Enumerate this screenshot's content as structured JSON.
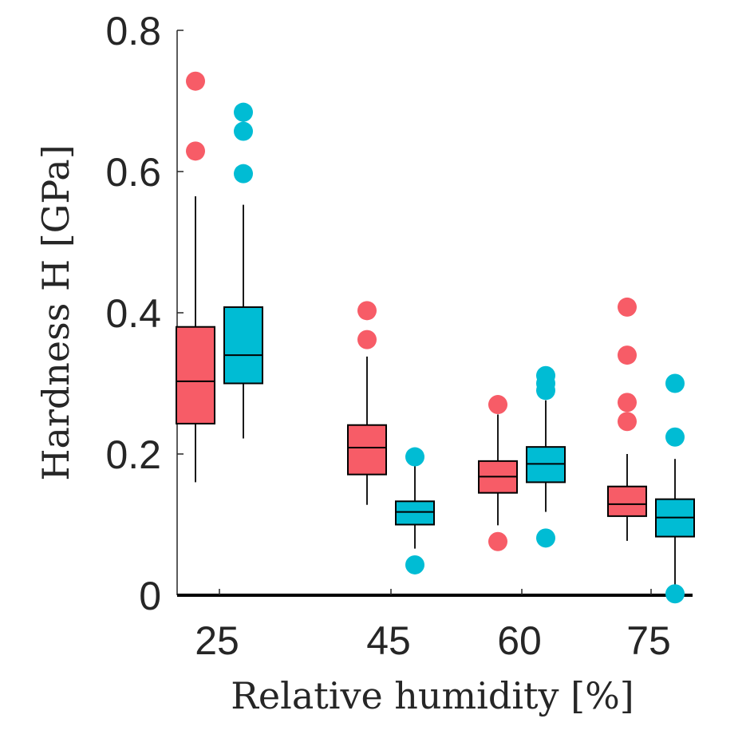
{
  "chart_data": {
    "type": "box",
    "xlabel": "Relative humidity [%]",
    "ylabel": "Hardness H [GPa]",
    "ylim": [
      0,
      0.8
    ],
    "yticks": [
      "0",
      "0.2",
      "0.4",
      "0.6",
      "0.8"
    ],
    "categories": [
      "25",
      "45",
      "60",
      "75"
    ],
    "colors": [
      "#f75c67",
      "#00bcd4"
    ],
    "grid": false,
    "groups": [
      {
        "category": "25",
        "boxes": [
          {
            "whisker_low": 0.16,
            "q1": 0.243,
            "median": 0.303,
            "q3": 0.38,
            "whisker_high": 0.565,
            "outliers": [
              0.629,
              0.728
            ]
          },
          {
            "whisker_low": 0.222,
            "q1": 0.3,
            "median": 0.34,
            "q3": 0.408,
            "whisker_high": 0.553,
            "outliers": [
              0.597,
              0.657,
              0.684
            ]
          }
        ]
      },
      {
        "category": "45",
        "boxes": [
          {
            "whisker_low": 0.128,
            "q1": 0.171,
            "median": 0.209,
            "q3": 0.241,
            "whisker_high": 0.338,
            "outliers": [
              0.362,
              0.403
            ]
          },
          {
            "whisker_low": 0.066,
            "q1": 0.1,
            "median": 0.118,
            "q3": 0.133,
            "whisker_high": 0.184,
            "outliers": [
              0.043,
              0.196
            ]
          }
        ]
      },
      {
        "category": "60",
        "boxes": [
          {
            "whisker_low": 0.099,
            "q1": 0.145,
            "median": 0.168,
            "q3": 0.19,
            "whisker_high": 0.256,
            "outliers": [
              0.076,
              0.27
            ]
          },
          {
            "whisker_low": 0.118,
            "q1": 0.16,
            "median": 0.186,
            "q3": 0.21,
            "whisker_high": 0.276,
            "outliers": [
              0.081,
              0.29,
              0.3,
              0.311
            ]
          }
        ]
      },
      {
        "category": "75",
        "boxes": [
          {
            "whisker_low": 0.077,
            "q1": 0.112,
            "median": 0.129,
            "q3": 0.154,
            "whisker_high": 0.2,
            "outliers": [
              0.246,
              0.273,
              0.34,
              0.408
            ]
          },
          {
            "whisker_low": 0.002,
            "q1": 0.083,
            "median": 0.11,
            "q3": 0.136,
            "whisker_high": 0.193,
            "outliers": [
              0.002,
              0.224,
              0.3
            ]
          }
        ]
      }
    ]
  }
}
